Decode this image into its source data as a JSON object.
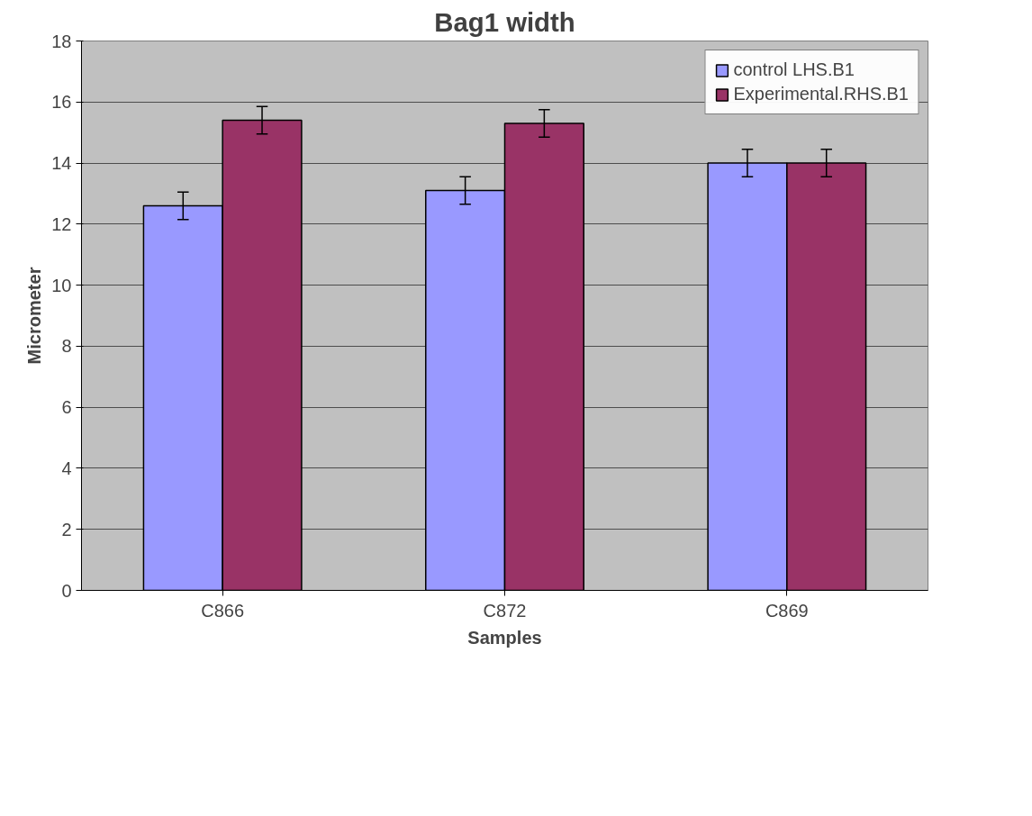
{
  "chart_data": {
    "type": "bar",
    "title": "Bag1 width",
    "xlabel": "Samples",
    "ylabel": "Micrometer",
    "categories": [
      "C866",
      "C872",
      "C869"
    ],
    "series": [
      {
        "name": "control LHS.B1",
        "color": "#9999ff",
        "values": [
          12.6,
          13.1,
          14.0
        ],
        "errors": [
          0.45,
          0.45,
          0.45
        ]
      },
      {
        "name": "Experimental.RHS.B1",
        "color": "#993366",
        "values": [
          15.4,
          15.3,
          14.0
        ],
        "errors": [
          0.45,
          0.45,
          0.45
        ]
      }
    ],
    "ylim": [
      0,
      18
    ],
    "yticks": [
      0,
      2,
      4,
      6,
      8,
      10,
      12,
      14,
      16,
      18
    ],
    "grid": "y",
    "legend": "top right"
  }
}
